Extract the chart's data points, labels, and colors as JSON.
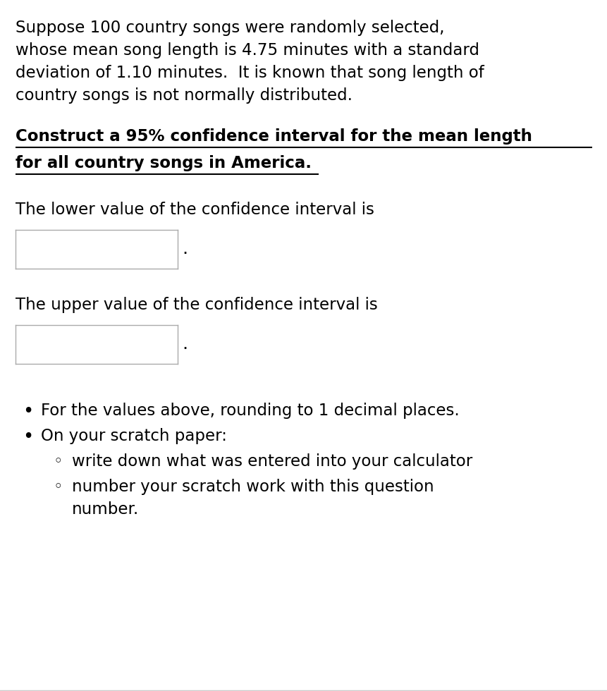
{
  "bg_color": "#ffffff",
  "text_color": "#000000",
  "box_border_color": "#aaaaaa",
  "para1_lines": [
    "Suppose 100 country songs were randomly selected,",
    "whose mean song length is 4.75 minutes with a standard",
    "deviation of 1.10 minutes.  It is known that song length of",
    "country songs is not normally distributed."
  ],
  "heading_lines": [
    "Construct a 95% confidence interval for the mean length",
    "for all country songs in America."
  ],
  "lower_label": "The lower value of the confidence interval is",
  "upper_label": "The upper value of the confidence interval is",
  "bullet1": "For the values above, rounding to 1 decimal places.",
  "bullet2": "On your scratch paper:",
  "sub_bullet1": "write down what was entered into your calculator",
  "sub_bullet2_line1": "number your scratch work with this question",
  "sub_bullet2_line2": "number.",
  "font_size_body": 16.5,
  "font_size_heading": 16.5
}
